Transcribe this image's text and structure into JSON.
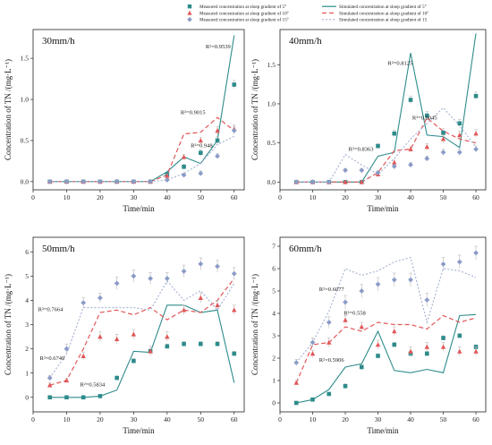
{
  "legend": [
    {
      "kind": "measured",
      "series": 0,
      "label": "Measured concentration at sloep gradient of 5°"
    },
    {
      "kind": "measured",
      "series": 1,
      "label": "Measured concentration at sloep gradient of 10°"
    },
    {
      "kind": "measured",
      "series": 2,
      "label": "Measured concentration at sloep gradient of 15°"
    },
    {
      "kind": "simulated",
      "series": 0,
      "label": "Simulated concentration at sloep gradient of 5°"
    },
    {
      "kind": "simulated",
      "series": 1,
      "label": "Simulated concentration at sloep gradient of 10°"
    },
    {
      "kind": "simulated",
      "series": 2,
      "label": "Simulated concentration at sloep gradient of 15"
    }
  ],
  "colors": {
    "s5": "#2e8b8b",
    "s10": "#e15759",
    "s15": "#8a9bc7",
    "s15line": "#a9b4d6"
  },
  "chart_data": [
    {
      "type": "line",
      "title": "30mm/h",
      "xlabel": "Time/min",
      "ylabel": "Concentration of TN /(mg·L⁻¹)",
      "x": [
        5,
        10,
        15,
        20,
        25,
        30,
        35,
        40,
        45,
        50,
        55,
        60
      ],
      "xticks": [
        0,
        10,
        20,
        30,
        40,
        50,
        60
      ],
      "xlim": [
        0,
        63
      ],
      "ylim": [
        -0.1,
        1.85
      ],
      "yticks": [
        0.0,
        0.5,
        1.0,
        1.5
      ],
      "ytick_labels": [
        "0.0",
        "0.5",
        "1.0",
        "1.5"
      ],
      "series": [
        {
          "name": "5°",
          "measured": [
            0,
            0,
            0,
            0,
            0,
            0,
            0,
            0.09,
            0.18,
            0.35,
            0.5,
            1.18
          ],
          "errors": [
            0.02,
            0.02,
            0.02,
            0.02,
            0.02,
            0.02,
            0.02,
            0.02,
            0.03,
            0.04,
            0.05,
            0.05
          ],
          "simulated": [
            0,
            0,
            0,
            0,
            0,
            0,
            0,
            0.12,
            0.3,
            0.22,
            0.5,
            1.78
          ]
        },
        {
          "name": "10°",
          "measured": [
            0,
            0,
            0,
            0,
            0,
            0,
            0,
            0.07,
            0.3,
            0.5,
            0.62,
            0.64
          ],
          "errors": [
            0.02,
            0.02,
            0.02,
            0.02,
            0.02,
            0.02,
            0.02,
            0.02,
            0.03,
            0.04,
            0.05,
            0.05
          ],
          "simulated": [
            0,
            0,
            0,
            0,
            0,
            0,
            0,
            0.08,
            0.58,
            0.6,
            0.78,
            0.62
          ]
        },
        {
          "name": "15°",
          "measured": [
            0,
            0,
            0,
            0,
            0,
            0,
            0,
            0.02,
            0.08,
            0.1,
            0.31,
            0.62
          ],
          "errors": [
            0.02,
            0.02,
            0.02,
            0.02,
            0.02,
            0.02,
            0.02,
            0.02,
            0.02,
            0.03,
            0.03,
            0.05
          ],
          "simulated": [
            0,
            0,
            0,
            0,
            0,
            0,
            0,
            0.02,
            0.1,
            0.22,
            0.45,
            0.55
          ]
        }
      ],
      "annotations": [
        {
          "text": "R²=0.9539",
          "x": 51.5,
          "y": 1.62
        },
        {
          "text": "R²=0.9015",
          "x": 44,
          "y": 0.82
        },
        {
          "text": "R²=0.948",
          "x": 47,
          "y": 0.42
        }
      ]
    },
    {
      "type": "line",
      "title": "40mm/h",
      "xlabel": "Time/min",
      "ylabel": "Concentration of TN /(mg·L⁻¹)",
      "x": [
        5,
        10,
        15,
        20,
        25,
        30,
        35,
        40,
        45,
        50,
        55,
        60
      ],
      "xticks": [
        0,
        10,
        20,
        30,
        40,
        50,
        60
      ],
      "xlim": [
        0,
        63
      ],
      "ylim": [
        -0.1,
        1.95
      ],
      "yticks": [
        0.0,
        0.5,
        1.0,
        1.5
      ],
      "ytick_labels": [
        "0.0",
        "0.5",
        "1.0",
        "1.5"
      ],
      "series": [
        {
          "name": "5°",
          "measured": [
            0,
            0,
            0,
            0,
            0,
            0.46,
            0.62,
            1.05,
            0.85,
            0.63,
            0.75,
            1.1
          ],
          "errors": [
            0.02,
            0.02,
            0.02,
            0.02,
            0.02,
            0.03,
            0.04,
            0.05,
            0.05,
            0.05,
            0.05,
            0.05
          ],
          "simulated": [
            0,
            0,
            0,
            0,
            0,
            0.33,
            0.38,
            1.65,
            0.6,
            0.58,
            0.44,
            1.9
          ]
        },
        {
          "name": "10°",
          "measured": [
            0,
            0,
            0,
            0,
            0,
            0.1,
            0.25,
            0.42,
            0.45,
            0.55,
            0.6,
            0.62
          ],
          "errors": [
            0.02,
            0.02,
            0.02,
            0.02,
            0.02,
            0.03,
            0.03,
            0.04,
            0.04,
            0.05,
            0.05,
            0.05
          ],
          "simulated": [
            0,
            0,
            0,
            0,
            0,
            0.12,
            0.4,
            0.42,
            0.82,
            0.65,
            0.55,
            0.5
          ]
        },
        {
          "name": "15°",
          "measured": [
            0,
            0,
            0,
            0.15,
            0.15,
            0.12,
            0.2,
            0.22,
            0.3,
            0.38,
            0.38,
            0.42
          ],
          "errors": [
            0.02,
            0.02,
            0.02,
            0.02,
            0.02,
            0.02,
            0.02,
            0.03,
            0.03,
            0.04,
            0.04,
            0.04
          ],
          "simulated": [
            0,
            0,
            0,
            0.35,
            0.22,
            0.1,
            0.3,
            0.55,
            0.75,
            0.95,
            0.72,
            0.45
          ]
        }
      ],
      "annotations": [
        {
          "text": "R²=0.8125",
          "x": 33,
          "y": 1.5
        },
        {
          "text": "R²=0.8045",
          "x": 40.5,
          "y": 0.8
        },
        {
          "text": "R²=0.8363",
          "x": 21,
          "y": 0.4
        }
      ]
    },
    {
      "type": "line",
      "title": "50mm/h",
      "xlabel": "Time/min",
      "ylabel": "Concentration of TN /(mg·L⁻¹)",
      "x": [
        5,
        10,
        15,
        20,
        25,
        30,
        35,
        40,
        45,
        50,
        55,
        60
      ],
      "xticks": [
        0,
        10,
        20,
        30,
        40,
        50,
        60
      ],
      "xlim": [
        0,
        63
      ],
      "ylim": [
        -0.6,
        6.6
      ],
      "yticks": [
        0,
        1,
        2,
        3,
        4,
        5,
        6
      ],
      "ytick_labels": [
        "0",
        "1",
        "2",
        "3",
        "4",
        "5",
        "6"
      ],
      "series": [
        {
          "name": "5°",
          "measured": [
            0,
            0,
            0,
            0.05,
            0.8,
            1.5,
            1.9,
            2.1,
            2.2,
            2.2,
            2.2,
            1.8
          ],
          "errors": [
            0.03,
            0.03,
            0.03,
            0.05,
            0.08,
            0.1,
            0.1,
            0.1,
            0.1,
            0.1,
            0.1,
            0.1
          ],
          "simulated": [
            0,
            0,
            0,
            0.05,
            0.3,
            1.9,
            1.85,
            3.8,
            3.8,
            3.5,
            3.6,
            0.6
          ]
        },
        {
          "name": "10°",
          "measured": [
            0.5,
            0.7,
            1.7,
            2.5,
            2.4,
            2.6,
            1.9,
            2.5,
            3.6,
            4.1,
            3.8,
            3.6
          ],
          "errors": [
            0.1,
            0.1,
            0.15,
            0.2,
            0.2,
            0.2,
            0.2,
            0.2,
            0.2,
            0.2,
            0.2,
            0.2
          ],
          "simulated": [
            0.5,
            0.7,
            2.0,
            3.5,
            3.6,
            3.4,
            3.7,
            3.2,
            3.6,
            3.5,
            4.0,
            4.9
          ]
        },
        {
          "name": "15°",
          "measured": [
            0.8,
            2.0,
            3.9,
            4.1,
            4.7,
            5.0,
            4.9,
            4.9,
            5.2,
            5.5,
            5.4,
            5.1
          ],
          "errors": [
            0.1,
            0.2,
            0.2,
            0.2,
            0.25,
            0.25,
            0.25,
            0.25,
            0.25,
            0.25,
            0.25,
            0.25
          ],
          "simulated": [
            0.8,
            1.8,
            3.7,
            3.7,
            3.7,
            3.7,
            3.6,
            4.8,
            4.0,
            4.4,
            3.6,
            4.7
          ]
        }
      ],
      "annotations": [
        {
          "text": "R²=0.7664",
          "x": 1.5,
          "y": 3.55
        },
        {
          "text": "R²=0.6749",
          "x": 2,
          "y": 1.55
        },
        {
          "text": "R²=0.5834",
          "x": 14,
          "y": 0.45
        }
      ]
    },
    {
      "type": "line",
      "title": "60mm/h",
      "xlabel": "Time/min",
      "ylabel": "Concentration of TN /(mg·L⁻¹)",
      "x": [
        5,
        10,
        15,
        20,
        25,
        30,
        35,
        40,
        45,
        50,
        55,
        60
      ],
      "xticks": [
        0,
        10,
        20,
        30,
        40,
        50,
        60
      ],
      "xlim": [
        0,
        63
      ],
      "ylim": [
        -0.4,
        7.4
      ],
      "yticks": [
        0,
        1,
        2,
        3,
        4,
        5,
        6,
        7
      ],
      "ytick_labels": [
        "0",
        "1",
        "2",
        "3",
        "4",
        "5",
        "6",
        "7"
      ],
      "series": [
        {
          "name": "5°",
          "measured": [
            0,
            0.15,
            0.4,
            0.75,
            1.6,
            2.1,
            2.6,
            2.2,
            2.2,
            2.9,
            3.0,
            2.5
          ],
          "errors": [
            0.03,
            0.05,
            0.05,
            0.1,
            0.1,
            0.1,
            0.1,
            0.1,
            0.1,
            0.1,
            0.1,
            0.1
          ],
          "simulated": [
            0,
            0.15,
            0.6,
            1.6,
            1.75,
            3.2,
            1.45,
            1.35,
            1.5,
            1.35,
            3.9,
            3.95
          ]
        },
        {
          "name": "10°",
          "measured": [
            0.9,
            2.2,
            2.7,
            3.7,
            3.4,
            2.6,
            3.2,
            2.3,
            2.5,
            2.5,
            2.3,
            2.3
          ],
          "errors": [
            0.1,
            0.15,
            0.2,
            0.2,
            0.2,
            0.2,
            0.2,
            0.2,
            0.2,
            0.2,
            0.2,
            0.2
          ],
          "simulated": [
            0.9,
            2.6,
            2.7,
            3.4,
            3.2,
            3.6,
            3.5,
            3.5,
            3.3,
            3.9,
            3.6,
            3.8
          ]
        },
        {
          "name": "15°",
          "measured": [
            1.8,
            2.7,
            3.6,
            4.5,
            5.0,
            5.3,
            5.5,
            5.5,
            4.6,
            6.2,
            6.3,
            6.7
          ],
          "errors": [
            0.15,
            0.2,
            0.25,
            0.3,
            0.3,
            0.3,
            0.3,
            0.3,
            0.3,
            0.3,
            0.3,
            0.3
          ],
          "simulated": [
            1.8,
            2.7,
            4.1,
            6.0,
            5.7,
            5.9,
            6.3,
            6.5,
            3.6,
            6.0,
            5.9,
            5.6
          ]
        }
      ],
      "annotations": [
        {
          "text": "R²=0.6077",
          "x": 12,
          "y": 5.0
        },
        {
          "text": "R²=0.558",
          "x": 19.5,
          "y": 3.95
        },
        {
          "text": "R²=0.5906",
          "x": 12,
          "y": 1.85
        }
      ]
    }
  ]
}
